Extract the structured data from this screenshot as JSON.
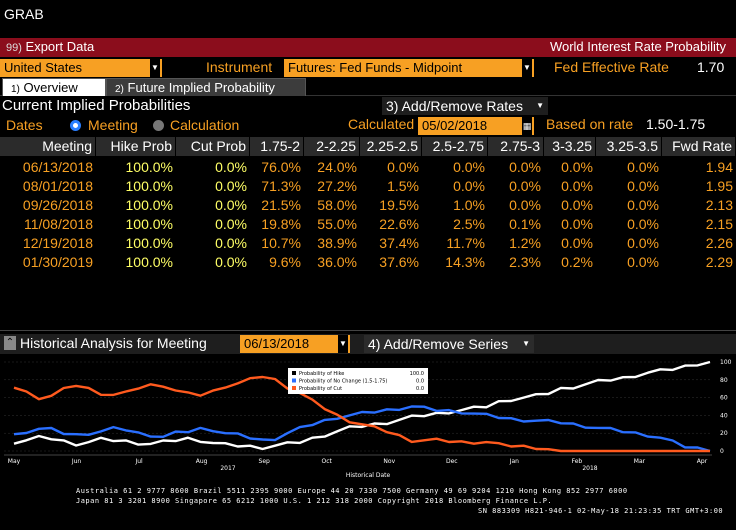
{
  "window": {
    "title": "GRAB"
  },
  "redbar": {
    "export": "Export Data",
    "export_num": "99)",
    "title": "World Interest Rate Probability"
  },
  "row2": {
    "country": "United States",
    "instrument_label": "Instrument",
    "instrument": "Futures: Fed Funds - Midpoint",
    "fed_label": "Fed Effective Rate",
    "fed_value": "1.70"
  },
  "tabs": [
    {
      "num": "1)",
      "label": "Overview"
    },
    {
      "num": "2)",
      "label": "Future Implied Probability"
    }
  ],
  "section": {
    "title": "Current Implied Probabilities",
    "add_remove": "3) Add/Remove Rates",
    "add_remove_num": "3)"
  },
  "row4": {
    "dates_label": "Dates",
    "meeting_label": "Meeting",
    "calculation_label": "Calculation",
    "calculated_label": "Calculated",
    "calculated_value": "05/02/2018",
    "based_label": "Based on rate",
    "based_value": "1.50-1.75"
  },
  "table": {
    "headers": [
      "Meeting",
      "Hike Prob",
      "Cut Prob",
      "1.75-2",
      "2-2.25",
      "2.25-2.5",
      "2.5-2.75",
      "2.75-3",
      "3-3.25",
      "3.25-3.5",
      "Fwd Rate"
    ],
    "rows": [
      [
        "06/13/2018",
        "100.0%",
        "0.0%",
        "76.0%",
        "24.0%",
        "0.0%",
        "0.0%",
        "0.0%",
        "0.0%",
        "0.0%",
        "1.94"
      ],
      [
        "08/01/2018",
        "100.0%",
        "0.0%",
        "71.3%",
        "27.2%",
        "1.5%",
        "0.0%",
        "0.0%",
        "0.0%",
        "0.0%",
        "1.95"
      ],
      [
        "09/26/2018",
        "100.0%",
        "0.0%",
        "21.5%",
        "58.0%",
        "19.5%",
        "1.0%",
        "0.0%",
        "0.0%",
        "0.0%",
        "2.13"
      ],
      [
        "11/08/2018",
        "100.0%",
        "0.0%",
        "19.8%",
        "55.0%",
        "22.6%",
        "2.5%",
        "0.1%",
        "0.0%",
        "0.0%",
        "2.15"
      ],
      [
        "12/19/2018",
        "100.0%",
        "0.0%",
        "10.7%",
        "38.9%",
        "37.4%",
        "11.7%",
        "1.2%",
        "0.0%",
        "0.0%",
        "2.26"
      ],
      [
        "01/30/2019",
        "100.0%",
        "0.0%",
        "9.6%",
        "36.0%",
        "37.6%",
        "14.3%",
        "2.3%",
        "0.2%",
        "0.0%",
        "2.29"
      ]
    ]
  },
  "historical": {
    "title": "Historical Analysis for Meeting",
    "meeting": "06/13/2018",
    "add_series": "4) Add/Remove Series"
  },
  "chart_data": {
    "type": "line",
    "xlabel": "Historical Date",
    "x_ticks": [
      "May",
      "Jun",
      "Jul",
      "Aug",
      "Sep",
      "Oct",
      "Nov",
      "Dec",
      "Jan",
      "Feb",
      "Mar",
      "Apr"
    ],
    "year_labels": [
      "2017",
      "2018"
    ],
    "ylim": [
      0,
      100
    ],
    "y_ticks": [
      0,
      20,
      40,
      60,
      80,
      100
    ],
    "legend": [
      {
        "name": "Probability of Hike",
        "value": "100.0",
        "color": "#ffffff"
      },
      {
        "name": "Probability of No Change (1.5-1.75)",
        "value": "0.0",
        "color": "#2a6fff"
      },
      {
        "name": "Probability of Cut",
        "value": "0.0",
        "color": "#ff5a1e"
      }
    ],
    "series": [
      {
        "name": "Probability of Hike",
        "color": "#ffffff",
        "values": [
          10,
          12,
          15,
          14,
          11,
          8,
          10,
          13,
          12,
          11,
          9,
          8,
          10,
          12,
          14,
          12,
          9,
          7,
          6,
          5,
          4,
          6,
          8,
          10,
          14,
          18,
          22,
          26,
          28,
          30,
          32,
          35,
          38,
          40,
          42,
          44,
          46,
          48,
          50,
          55,
          58,
          60,
          62,
          65,
          70,
          72,
          75,
          78,
          80,
          82,
          85,
          88,
          90,
          92,
          95,
          98,
          100
        ]
      },
      {
        "name": "Probability of No Change (1.5-1.75)",
        "color": "#2a6fff",
        "values": [
          18,
          22,
          25,
          24,
          20,
          18,
          20,
          22,
          25,
          24,
          20,
          18,
          16,
          20,
          22,
          25,
          24,
          20,
          18,
          15,
          12,
          14,
          20,
          25,
          30,
          34,
          38,
          40,
          42,
          44,
          46,
          48,
          50,
          48,
          46,
          45,
          44,
          42,
          40,
          38,
          36,
          35,
          34,
          33,
          32,
          30,
          28,
          26,
          24,
          22,
          20,
          18,
          15,
          10,
          5,
          3,
          0
        ]
      },
      {
        "name": "Probability of Cut",
        "color": "#ff5a1e",
        "values": [
          72,
          66,
          60,
          62,
          69,
          74,
          70,
          65,
          63,
          65,
          71,
          74,
          74,
          68,
          64,
          63,
          67,
          73,
          76,
          80,
          84,
          80,
          72,
          65,
          56,
          48,
          40,
          34,
          30,
          26,
          22,
          17,
          12,
          12,
          12,
          11,
          10,
          10,
          10,
          7,
          6,
          5,
          4,
          2,
          0,
          0,
          0,
          0,
          0,
          0,
          0,
          0,
          0,
          0,
          0,
          0,
          0
        ]
      }
    ]
  },
  "footer": {
    "line1": "Australia 61 2 9777 8600 Brazil 5511 2395 9000 Europe 44 20 7330 7500 Germany 49 69 9204 1210 Hong Kong 852 2977 6000",
    "line2": "Japan 81 3 3201 8900         Singapore 65 6212 1000       U.S. 1 212 318 2000           Copyright 2018 Bloomberg Finance L.P.",
    "line3": "SN 883309 H821-946-1 02-May-18 21:23:35 TRT  GMT+3:00"
  }
}
